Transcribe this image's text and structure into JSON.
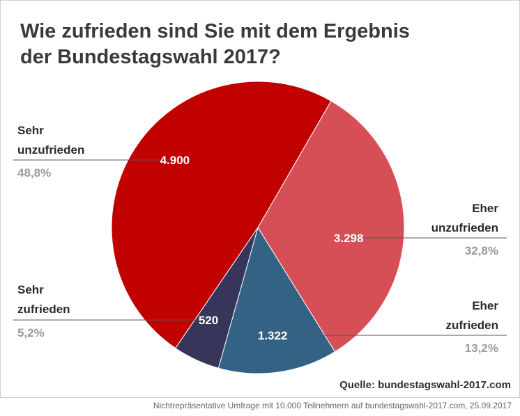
{
  "chart_data": {
    "type": "pie",
    "title": [
      "Wie zufrieden sind Sie mit dem Ergebnis",
      "der Bundestagswahl 2017?"
    ],
    "start_angle_deg": 30,
    "slices": [
      {
        "label": [
          "Eher",
          "unzufrieden"
        ],
        "value": 3298,
        "value_label": "3.298",
        "percent_label": "32,8%",
        "color": "#d64f57"
      },
      {
        "label": [
          "Eher",
          "zufrieden"
        ],
        "value": 1322,
        "value_label": "1.322",
        "percent_label": "13,2%",
        "color": "#336285"
      },
      {
        "label": [
          "Sehr",
          "zufrieden"
        ],
        "value": 520,
        "value_label": "520",
        "percent_label": "5,2%",
        "color": "#37365a"
      },
      {
        "label": [
          "Sehr",
          "unzufrieden"
        ],
        "value": 4900,
        "value_label": "4.900",
        "percent_label": "48,8%",
        "color": "#c10000"
      }
    ]
  },
  "source": "Quelle: bundestagswahl-2017.com",
  "footnote": "Nichtrepräsentative Umfrage mit 10.000 Teilnehmern auf bundestagswahl-2017.com, 25.09.2017"
}
